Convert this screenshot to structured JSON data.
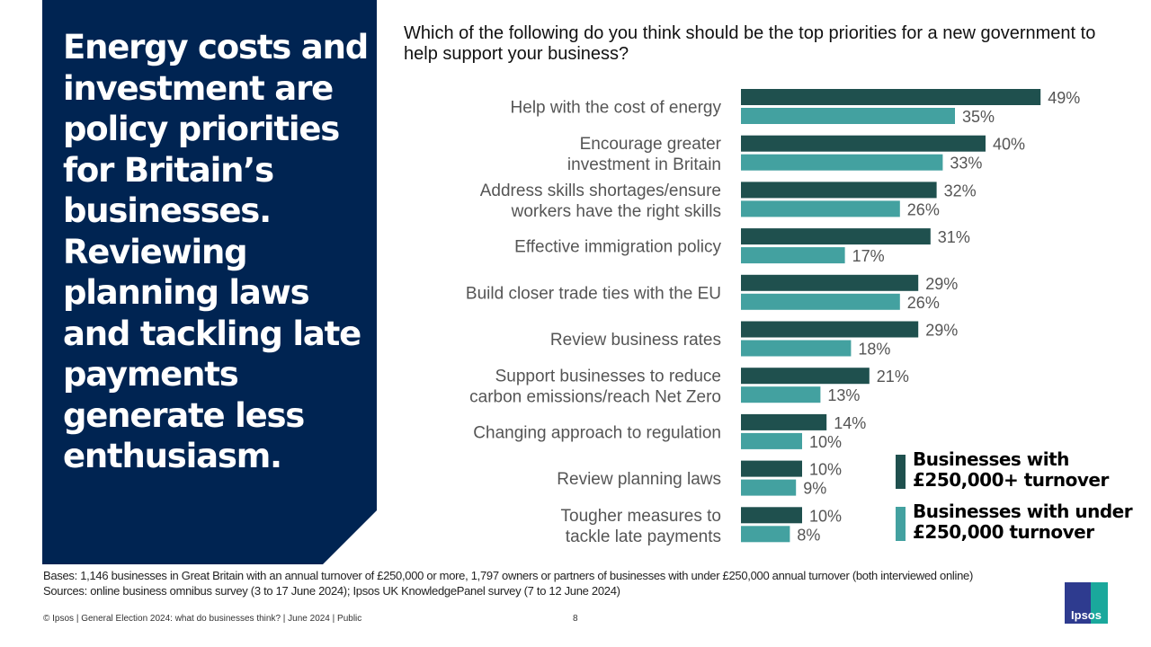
{
  "headline": "Energy costs and investment are policy priorities for Britain’s businesses. Reviewing planning laws and tackling late payments generate less enthusiasm.",
  "question": "Which of the following do you think should be the top priorities for a new government to help support your business?",
  "colors": {
    "panel": "#002452",
    "series_large": "#1f504e",
    "series_small": "#43a1a0"
  },
  "chart_data": {
    "type": "bar",
    "orientation": "horizontal",
    "xlim": [
      0,
      100
    ],
    "categories": [
      [
        "Help with the cost of energy"
      ],
      [
        "Encourage greater",
        "investment in Britain"
      ],
      [
        "Address skills shortages/ensure",
        "workers have the right skills"
      ],
      [
        "Effective immigration policy"
      ],
      [
        "Build closer trade ties with the EU"
      ],
      [
        "Review business rates"
      ],
      [
        "Support businesses to reduce",
        "carbon emissions/reach Net Zero"
      ],
      [
        "Changing approach to regulation"
      ],
      [
        "Review planning laws"
      ],
      [
        "Tougher measures to",
        "tackle late payments"
      ]
    ],
    "series": [
      {
        "name": "Businesses with £250,000+ turnover",
        "values": [
          49,
          40,
          32,
          31,
          29,
          29,
          21,
          14,
          10,
          10
        ]
      },
      {
        "name": "Businesses with under £250,000 turnover",
        "values": [
          35,
          33,
          26,
          17,
          26,
          18,
          13,
          10,
          9,
          8
        ]
      }
    ],
    "legend": "right"
  },
  "legend": [
    {
      "line1": "Businesses with",
      "line2": "£250,000+ turnover"
    },
    {
      "line1": "Businesses with under",
      "line2": "£250,000 turnover"
    }
  ],
  "footer": {
    "bases": "Bases: 1,146 businesses in Great Britain with an annual turnover of £250,000 or more, 1,797 owners or partners of businesses with under £250,000 annual turnover (both interviewed online)",
    "sources": "Sources: online business omnibus survey (3 to 17 June 2024); Ipsos UK KnowledgePanel survey (7 to 12 June 2024)",
    "copyright": "© Ipsos | General Election 2024: what do businesses think? | June 2024  | Public",
    "page": "8",
    "logo": "Ipsos"
  }
}
